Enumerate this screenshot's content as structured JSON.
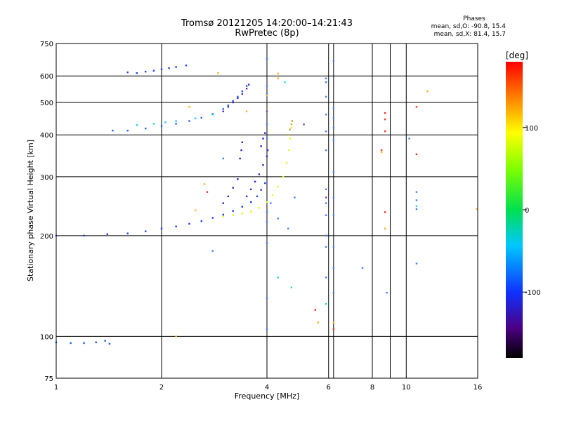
{
  "header": {
    "title": "Tromsø 20121205 14:20:00–14:21:43",
    "subtitle": "RwPretec (8p)",
    "phases_label": "Phases",
    "stats_o": "mean, sd,O: -90.8, 15.4",
    "stats_x": "mean, sd,X: 81.4, 15.7"
  },
  "colorbar": {
    "label": "[deg]",
    "min": -180,
    "max": 180,
    "ticks": [
      {
        "value": 100,
        "label": "100"
      },
      {
        "value": 0,
        "label": "0"
      },
      {
        "value": -100,
        "label": "-100"
      }
    ]
  },
  "chart_data": {
    "type": "scatter",
    "xlabel": "Frequency [MHz]",
    "ylabel": "Stationary phase Virtual Height [km]",
    "xscale": "log",
    "yscale": "log",
    "xlim": [
      1,
      16
    ],
    "ylim": [
      75,
      750
    ],
    "xticks": [
      1,
      2,
      4,
      6,
      8,
      10,
      16
    ],
    "yticks": [
      75,
      100,
      200,
      300,
      400,
      500,
      600,
      750
    ],
    "vlines": [
      2,
      4,
      6,
      6.2,
      8,
      9,
      10
    ],
    "hlines": [
      100,
      200,
      300,
      400,
      500,
      600
    ],
    "series": [
      {
        "color": "#1a3cff",
        "points": [
          [
            1.0,
            200
          ],
          [
            1.2,
            200
          ],
          [
            1.4,
            202
          ],
          [
            1.6,
            203
          ],
          [
            1.8,
            206
          ],
          [
            2.0,
            210
          ],
          [
            2.2,
            213
          ],
          [
            2.4,
            217
          ],
          [
            2.6,
            221
          ],
          [
            2.8,
            226
          ],
          [
            3.0,
            231
          ],
          [
            3.2,
            237
          ],
          [
            3.4,
            244
          ],
          [
            3.6,
            252
          ],
          [
            3.75,
            262
          ],
          [
            3.85,
            274
          ],
          [
            3.95,
            287
          ]
        ]
      },
      {
        "color": "#1a5cff",
        "points": [
          [
            1.0,
            96
          ],
          [
            1.1,
            95.5
          ],
          [
            1.2,
            95.5
          ],
          [
            1.3,
            96
          ],
          [
            1.38,
            97
          ],
          [
            1.42,
            95
          ]
        ]
      },
      {
        "color": "#2060ff",
        "points": [
          [
            1.45,
            412
          ],
          [
            1.6,
            412
          ],
          [
            1.8,
            418
          ],
          [
            2.0,
            425
          ],
          [
            2.2,
            432
          ],
          [
            2.4,
            440
          ],
          [
            2.6,
            450
          ],
          [
            2.8,
            462
          ],
          [
            3.0,
            478
          ],
          [
            3.1,
            490
          ],
          [
            3.2,
            505
          ],
          [
            3.3,
            520
          ],
          [
            3.4,
            540
          ],
          [
            3.5,
            560
          ]
        ]
      },
      {
        "color": "#5020d0",
        "points": [
          [
            3.0,
            470
          ],
          [
            3.1,
            485
          ],
          [
            3.2,
            500
          ],
          [
            3.3,
            515
          ],
          [
            3.4,
            530
          ],
          [
            3.5,
            550
          ],
          [
            3.55,
            565
          ]
        ]
      },
      {
        "color": "#2040ff",
        "points": [
          [
            1.6,
            615
          ],
          [
            1.7,
            612
          ],
          [
            1.8,
            618
          ],
          [
            1.9,
            622
          ],
          [
            2.0,
            628
          ],
          [
            2.1,
            633
          ],
          [
            2.2,
            638
          ],
          [
            2.35,
            645
          ]
        ]
      },
      {
        "color": "#20c8ff",
        "points": [
          [
            1.7,
            428
          ],
          [
            1.9,
            432
          ],
          [
            2.05,
            436
          ],
          [
            2.2,
            440
          ],
          [
            2.5,
            448
          ],
          [
            2.8,
            460
          ]
        ]
      },
      {
        "color": "#ddff20",
        "points": [
          [
            3.0,
            228
          ],
          [
            3.2,
            230
          ],
          [
            3.4,
            233
          ],
          [
            3.6,
            236
          ],
          [
            3.8,
            242
          ],
          [
            4.0,
            252
          ],
          [
            4.15,
            264
          ],
          [
            4.3,
            280
          ],
          [
            4.45,
            300
          ],
          [
            4.55,
            330
          ],
          [
            4.62,
            360
          ],
          [
            4.66,
            390
          ],
          [
            4.7,
            420
          ]
        ]
      },
      {
        "color": "#c8a040",
        "points": [
          [
            4.6,
            400
          ],
          [
            4.65,
            415
          ],
          [
            4.7,
            430
          ],
          [
            4.72,
            440
          ]
        ]
      },
      {
        "color": "#3020d0",
        "points": [
          [
            3.0,
            250
          ],
          [
            3.1,
            262
          ],
          [
            3.2,
            278
          ],
          [
            3.3,
            295
          ]
        ]
      },
      {
        "color": "#3a20e0",
        "points": [
          [
            3.5,
            262
          ],
          [
            3.6,
            275
          ],
          [
            3.7,
            290
          ],
          [
            3.8,
            305
          ],
          [
            3.9,
            325
          ],
          [
            4.0,
            345
          ],
          [
            4.02,
            360
          ]
        ]
      },
      {
        "color": "#3020d0",
        "points": [
          [
            3.35,
            340
          ],
          [
            3.38,
            360
          ],
          [
            3.4,
            380
          ],
          [
            3.85,
            370
          ],
          [
            3.9,
            390
          ],
          [
            3.95,
            405
          ]
        ]
      },
      {
        "color": "#4080ff",
        "points": [
          [
            2.8,
            180
          ],
          [
            3.0,
            340
          ],
          [
            4.0,
            675
          ],
          [
            4.0,
            560
          ],
          [
            4.0,
            530
          ],
          [
            4.0,
            430
          ],
          [
            4.0,
            390
          ],
          [
            4.0,
            235
          ],
          [
            4.0,
            220
          ],
          [
            4.0,
            190
          ],
          [
            4.0,
            130
          ],
          [
            4.0,
            105
          ],
          [
            5.9,
            590
          ],
          [
            5.9,
            575
          ],
          [
            5.9,
            520
          ],
          [
            5.9,
            460
          ],
          [
            5.9,
            410
          ],
          [
            5.9,
            360
          ],
          [
            5.9,
            275
          ],
          [
            5.9,
            250
          ],
          [
            5.9,
            230
          ],
          [
            5.9,
            200
          ],
          [
            5.9,
            185
          ],
          [
            5.9,
            150
          ],
          [
            6.2,
            665
          ],
          [
            6.2,
            480
          ],
          [
            6.2,
            450
          ],
          [
            6.2,
            420
          ],
          [
            6.2,
            385
          ],
          [
            6.2,
            310
          ],
          [
            6.2,
            260
          ],
          [
            6.2,
            230
          ],
          [
            6.2,
            185
          ],
          [
            6.2,
            160
          ],
          [
            6.2,
            135
          ],
          [
            7.5,
            160
          ],
          [
            8.8,
            135
          ],
          [
            10.2,
            390
          ],
          [
            10.7,
            270
          ],
          [
            10.7,
            255
          ],
          [
            10.7,
            240
          ],
          [
            10.7,
            165
          ],
          [
            4.6,
            210
          ],
          [
            4.3,
            225
          ],
          [
            4.1,
            250
          ],
          [
            4.8,
            260
          ]
        ]
      },
      {
        "color": "#20d8d0",
        "points": [
          [
            4.3,
            150
          ],
          [
            4.7,
            140
          ],
          [
            5.9,
            125
          ],
          [
            10.7,
            245
          ],
          [
            4.5,
            575
          ]
        ]
      },
      {
        "color": "#ff3020",
        "points": [
          [
            2.7,
            270
          ],
          [
            5.5,
            120
          ],
          [
            6.2,
            105
          ],
          [
            8.7,
            465
          ],
          [
            8.7,
            445
          ],
          [
            8.7,
            410
          ],
          [
            8.5,
            360
          ],
          [
            10.7,
            485
          ],
          [
            10.7,
            350
          ],
          [
            8.7,
            235
          ]
        ]
      },
      {
        "color": "#ffb020",
        "points": [
          [
            2.4,
            485
          ],
          [
            2.65,
            285
          ],
          [
            2.5,
            238
          ],
          [
            2.2,
            100
          ],
          [
            3.5,
            470
          ],
          [
            4.0,
            525
          ],
          [
            4.3,
            610
          ],
          [
            4.3,
            590
          ],
          [
            5.6,
            110
          ],
          [
            6.2,
            110
          ],
          [
            8.5,
            355
          ],
          [
            8.7,
            210
          ],
          [
            11.5,
            540
          ],
          [
            15.9,
            240
          ],
          [
            2.9,
            612
          ]
        ]
      },
      {
        "color": "#8040c0",
        "points": [
          [
            4.0,
            470
          ],
          [
            5.1,
            430
          ],
          [
            5.9,
            260
          ]
        ]
      }
    ]
  }
}
